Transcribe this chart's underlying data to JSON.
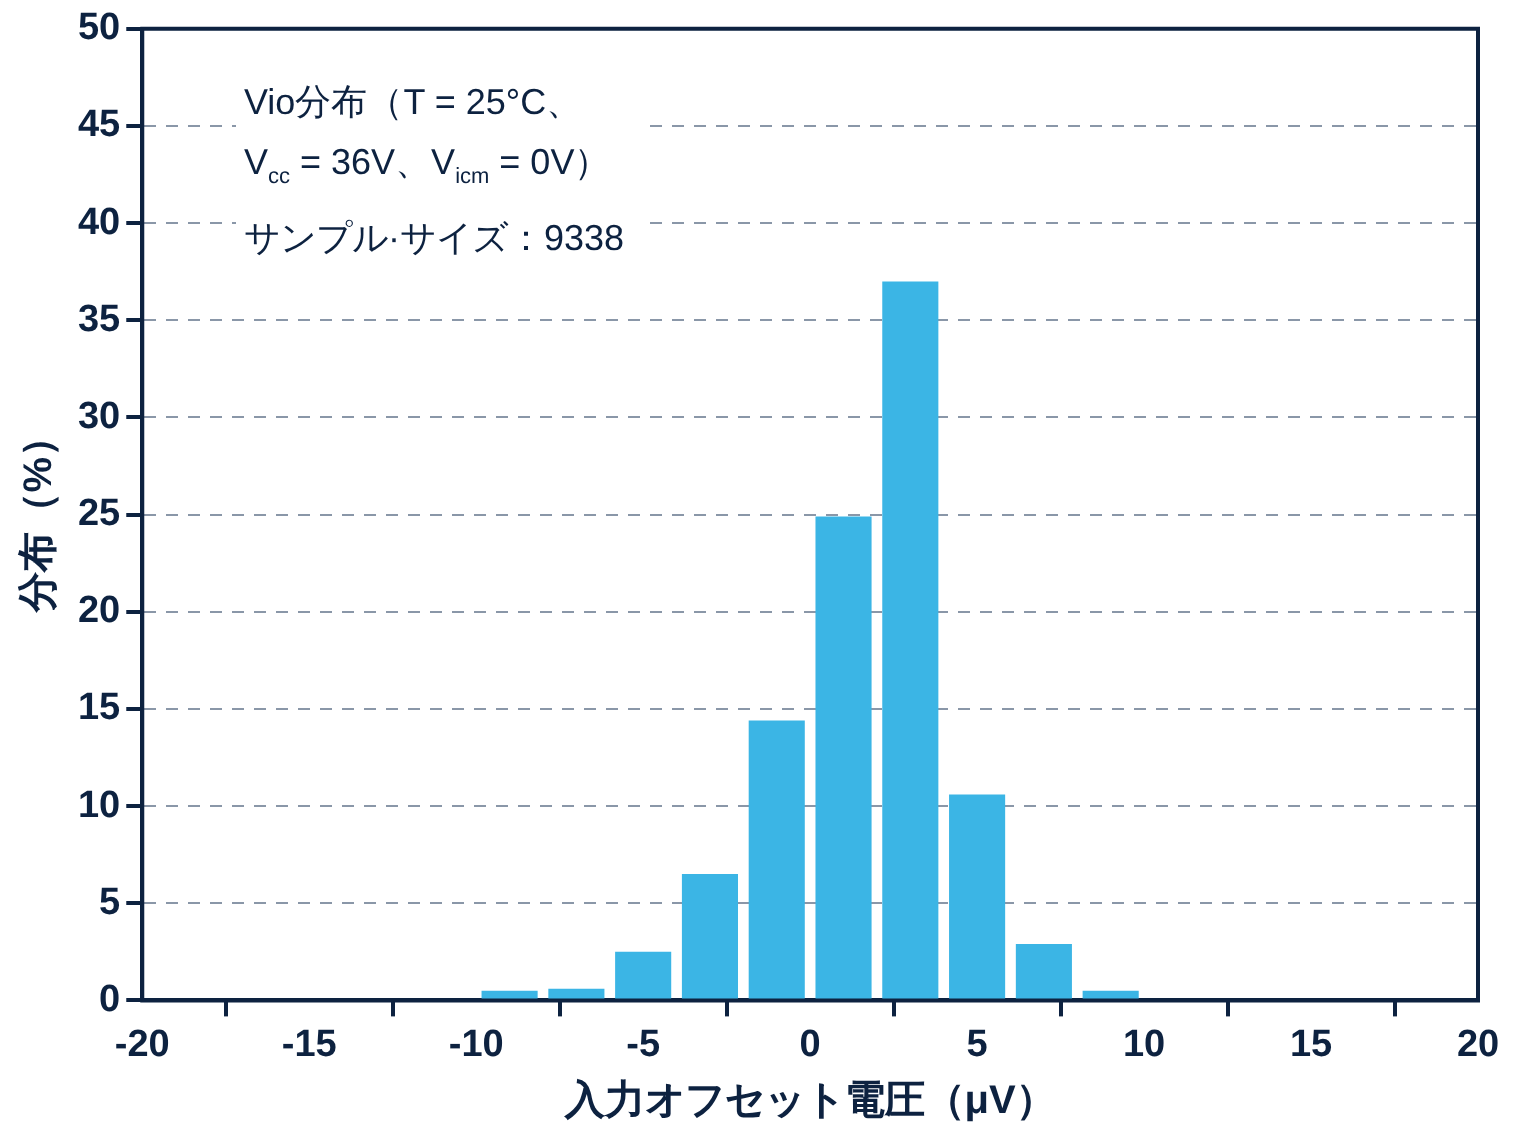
{
  "chart_data": {
    "type": "histogram",
    "xlabel": "入力オフセット電圧（μV）",
    "ylabel": "分布（%）",
    "bins": [
      -20,
      -18,
      -16,
      -14,
      -12,
      -10,
      -8,
      -6,
      -4,
      -2,
      0,
      2,
      4,
      6,
      8,
      10,
      12,
      14,
      16,
      18,
      20
    ],
    "values": [
      0,
      0,
      0,
      0,
      0,
      0.5,
      0.6,
      2.5,
      6.5,
      14.4,
      24.9,
      37,
      10.6,
      2.9,
      0.5,
      0,
      0,
      0,
      0,
      0
    ],
    "color": "#3bb5e5",
    "xlim": [
      -20,
      20
    ],
    "xticks": [
      -20,
      -15,
      -10,
      -5,
      0,
      5,
      10,
      15,
      20
    ],
    "ylim": [
      0,
      50
    ],
    "yticks": [
      0,
      5,
      10,
      15,
      20,
      25,
      30,
      35,
      40,
      45,
      50
    ],
    "grid": "y",
    "annotations": [
      "Vio分布（T = 25°C、",
      "V$_{cc}$ = 36V、V$_{icm}$ = 0V）",
      "サンプル·サイズ：9338"
    ]
  }
}
